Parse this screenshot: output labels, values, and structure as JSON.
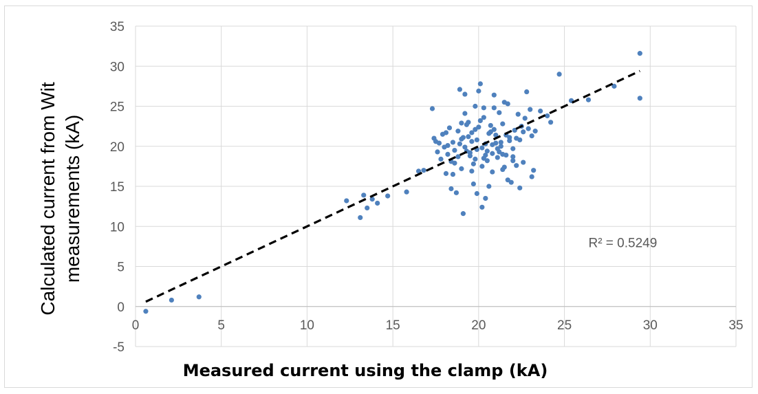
{
  "chart_data": {
    "type": "scatter",
    "title": "",
    "xlabel": "Measured current using the clamp (kA)",
    "ylabel_lines": [
      "Calculated current from Wit",
      "measurements (kA)"
    ],
    "xlim": [
      0,
      35
    ],
    "ylim": [
      -5,
      35
    ],
    "xticks": [
      0,
      5,
      10,
      15,
      20,
      25,
      30,
      35
    ],
    "yticks": [
      -5,
      0,
      5,
      10,
      15,
      20,
      25,
      30,
      35
    ],
    "grid": true,
    "legend": "none",
    "colors": {
      "points": "#4f81bd",
      "trendline": "#000000",
      "grid": "#d9d9d9"
    },
    "trendline": {
      "style": "dashed",
      "x": [
        0.6,
        29.4
      ],
      "y": [
        0.6,
        29.4
      ]
    },
    "annotation": {
      "text": "R² = 0.5249",
      "x": 26.4,
      "y": 7.4
    },
    "series": [
      {
        "x": [
          0.6,
          2.1,
          3.7,
          12.3,
          13.1,
          13.3,
          13.5,
          13.8,
          14.1,
          14.7,
          15.8,
          16.5,
          16.8,
          17.3,
          17.4,
          17.5,
          17.6,
          17.8,
          17.9,
          18.0,
          18.1,
          18.2,
          18.3,
          18.4,
          18.5,
          18.6,
          18.7,
          18.8,
          18.9,
          19.0,
          19.1,
          19.2,
          19.3,
          19.4,
          19.5,
          19.6,
          19.7,
          19.8,
          19.9,
          20.0,
          20.1,
          20.2,
          20.3,
          20.4,
          20.5,
          20.6,
          20.7,
          20.8,
          20.9,
          21.0,
          21.1,
          21.2,
          21.3,
          21.4,
          21.5,
          21.6,
          21.7,
          21.8,
          21.9,
          22.0,
          22.1,
          22.2,
          22.3,
          22.4,
          22.5,
          22.6,
          22.7,
          22.8,
          22.9,
          23.0,
          23.1,
          23.2,
          23.3,
          23.6,
          24.0,
          24.2,
          24.7,
          25.4,
          26.4,
          27.9,
          29.4,
          29.4,
          18.2,
          18.6,
          19.0,
          19.4,
          19.8,
          20.2,
          20.6,
          21.0,
          21.4,
          21.8,
          22.2,
          18.4,
          18.8,
          19.2,
          19.6,
          20.0,
          20.4,
          20.8,
          21.2,
          21.6,
          22.0,
          18.9,
          19.3,
          19.7,
          20.1,
          20.5,
          20.9,
          21.3,
          19.1,
          19.5,
          19.9,
          20.3,
          20.7,
          21.1,
          18.5,
          19.0,
          19.6,
          20.2,
          20.8,
          21.4,
          22.0,
          22.6,
          17.7,
          18.1,
          19.9,
          20.4,
          21.7,
          22.4,
          23.1,
          19.2,
          19.8,
          20.3,
          20.9,
          21.5
        ],
        "y": [
          -0.6,
          0.8,
          1.2,
          13.2,
          11.1,
          13.9,
          12.3,
          13.4,
          12.9,
          13.8,
          14.3,
          16.9,
          17.0,
          24.7,
          21.0,
          20.6,
          19.3,
          18.4,
          21.5,
          19.9,
          16.6,
          19.0,
          22.3,
          14.7,
          20.5,
          17.9,
          14.2,
          18.7,
          27.1,
          22.9,
          11.6,
          26.5,
          19.4,
          23.0,
          18.8,
          21.7,
          15.3,
          22.1,
          19.6,
          26.9,
          27.8,
          12.4,
          24.8,
          20.3,
          18.2,
          15.0,
          22.6,
          19.1,
          26.4,
          21.4,
          18.6,
          24.2,
          20.0,
          22.8,
          17.4,
          18.9,
          25.3,
          21.1,
          15.5,
          19.7,
          22.0,
          17.6,
          24.0,
          20.8,
          22.5,
          21.8,
          23.5,
          26.8,
          22.2,
          24.6,
          21.3,
          17.0,
          21.9,
          24.4,
          23.8,
          23.0,
          29.0,
          25.7,
          25.8,
          27.5,
          31.6,
          26.0,
          20.1,
          19.5,
          20.9,
          21.2,
          18.4,
          19.8,
          21.6,
          20.4,
          19.0,
          20.7,
          21.0,
          18.1,
          21.9,
          19.9,
          20.6,
          22.4,
          18.9,
          20.2,
          19.3,
          21.4,
          18.7,
          20.3,
          22.7,
          17.8,
          23.2,
          19.4,
          22.1,
          20.5,
          21.1,
          19.2,
          20.8,
          18.5,
          21.8,
          19.7,
          16.5,
          17.2,
          16.9,
          17.5,
          16.8,
          17.1,
          18.2,
          18.0,
          20.4,
          21.7,
          14.1,
          13.5,
          15.8,
          14.8,
          16.2,
          24.1,
          25.0,
          23.6,
          24.8,
          25.5
        ]
      }
    ]
  }
}
